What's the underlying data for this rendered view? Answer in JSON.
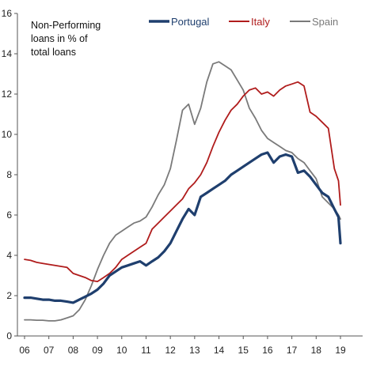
{
  "chart_data": {
    "type": "line",
    "title": "",
    "annotation": [
      "Non-Performing",
      "loans in % of",
      "total loans"
    ],
    "xlabel": "",
    "ylabel": "",
    "x_tick_labels": [
      "06",
      "07",
      "08",
      "09",
      "10",
      "11",
      "12",
      "13",
      "14",
      "15",
      "16",
      "17",
      "18",
      "19"
    ],
    "y_tick_labels": [
      "0",
      "2",
      "4",
      "6",
      "8",
      "10",
      "12",
      "14",
      "16"
    ],
    "xlim": [
      2006.0,
      2019.8
    ],
    "ylim": [
      0,
      16
    ],
    "grid": false,
    "legend_position": "top",
    "series": [
      {
        "name": "Portugal",
        "color": "#1f3f6e",
        "x": [
          2006.0,
          2006.25,
          2006.5,
          2006.75,
          2007.0,
          2007.25,
          2007.5,
          2007.75,
          2008.0,
          2008.25,
          2008.5,
          2008.75,
          2009.0,
          2009.25,
          2009.5,
          2009.75,
          2010.0,
          2010.25,
          2010.5,
          2010.75,
          2011.0,
          2011.25,
          2011.5,
          2011.75,
          2012.0,
          2012.25,
          2012.5,
          2012.75,
          2013.0,
          2013.25,
          2013.5,
          2013.75,
          2014.0,
          2014.25,
          2014.5,
          2014.75,
          2015.0,
          2015.25,
          2015.5,
          2015.75,
          2016.0,
          2016.25,
          2016.5,
          2016.75,
          2017.0,
          2017.25,
          2017.5,
          2017.75,
          2018.0,
          2018.25,
          2018.5,
          2018.75,
          2018.92,
          2019.0
        ],
        "values": [
          1.9,
          1.9,
          1.85,
          1.8,
          1.8,
          1.75,
          1.75,
          1.7,
          1.65,
          1.8,
          1.95,
          2.1,
          2.3,
          2.6,
          3.0,
          3.2,
          3.4,
          3.5,
          3.6,
          3.7,
          3.5,
          3.7,
          3.9,
          4.2,
          4.6,
          5.2,
          5.8,
          6.3,
          6.0,
          6.9,
          7.1,
          7.3,
          7.5,
          7.7,
          8.0,
          8.2,
          8.4,
          8.6,
          8.8,
          9.0,
          9.1,
          8.6,
          8.9,
          9.0,
          8.9,
          8.1,
          8.2,
          7.9,
          7.5,
          7.1,
          6.9,
          6.3,
          5.9,
          4.6
        ]
      },
      {
        "name": "Italy",
        "color": "#b01c1c",
        "x": [
          2006.0,
          2006.25,
          2006.5,
          2006.75,
          2007.0,
          2007.25,
          2007.5,
          2007.75,
          2008.0,
          2008.25,
          2008.5,
          2008.75,
          2009.0,
          2009.25,
          2009.5,
          2009.75,
          2010.0,
          2010.25,
          2010.5,
          2010.75,
          2011.0,
          2011.25,
          2011.5,
          2011.75,
          2012.0,
          2012.25,
          2012.5,
          2012.75,
          2013.0,
          2013.25,
          2013.5,
          2013.75,
          2014.0,
          2014.25,
          2014.5,
          2014.75,
          2015.0,
          2015.25,
          2015.5,
          2015.75,
          2016.0,
          2016.25,
          2016.5,
          2016.75,
          2017.0,
          2017.25,
          2017.5,
          2017.75,
          2018.0,
          2018.25,
          2018.5,
          2018.75,
          2018.92,
          2019.0
        ],
        "values": [
          3.8,
          3.75,
          3.65,
          3.6,
          3.55,
          3.5,
          3.45,
          3.4,
          3.1,
          3.0,
          2.9,
          2.75,
          2.7,
          2.9,
          3.1,
          3.4,
          3.8,
          4.0,
          4.2,
          4.4,
          4.6,
          5.3,
          5.6,
          5.9,
          6.2,
          6.5,
          6.8,
          7.3,
          7.6,
          8.0,
          8.6,
          9.4,
          10.1,
          10.7,
          11.2,
          11.5,
          11.9,
          12.2,
          12.3,
          12.0,
          12.1,
          11.9,
          12.2,
          12.4,
          12.5,
          12.6,
          12.4,
          11.1,
          10.9,
          10.6,
          10.3,
          8.3,
          7.7,
          6.5
        ]
      },
      {
        "name": "Spain",
        "color": "#7a7a7a",
        "x": [
          2006.0,
          2006.25,
          2006.5,
          2006.75,
          2007.0,
          2007.25,
          2007.5,
          2007.75,
          2008.0,
          2008.25,
          2008.5,
          2008.75,
          2009.0,
          2009.25,
          2009.5,
          2009.75,
          2010.0,
          2010.25,
          2010.5,
          2010.75,
          2011.0,
          2011.25,
          2011.5,
          2011.75,
          2012.0,
          2012.25,
          2012.5,
          2012.75,
          2013.0,
          2013.25,
          2013.5,
          2013.75,
          2014.0,
          2014.25,
          2014.5,
          2014.75,
          2015.0,
          2015.25,
          2015.5,
          2015.75,
          2016.0,
          2016.25,
          2016.5,
          2016.75,
          2017.0,
          2017.25,
          2017.5,
          2017.75,
          2018.0,
          2018.25,
          2018.5,
          2018.75,
          2018.92,
          2019.0
        ],
        "values": [
          0.8,
          0.8,
          0.78,
          0.78,
          0.75,
          0.75,
          0.8,
          0.9,
          1.0,
          1.3,
          1.8,
          2.5,
          3.3,
          4.0,
          4.6,
          5.0,
          5.2,
          5.4,
          5.6,
          5.7,
          5.9,
          6.4,
          7.0,
          7.5,
          8.3,
          9.7,
          11.2,
          11.5,
          10.5,
          11.3,
          12.6,
          13.5,
          13.6,
          13.4,
          13.2,
          12.7,
          12.2,
          11.3,
          10.8,
          10.2,
          9.8,
          9.6,
          9.4,
          9.2,
          9.1,
          8.8,
          8.6,
          8.2,
          7.8,
          6.9,
          6.6,
          6.3,
          6.0,
          5.8
        ]
      }
    ]
  }
}
